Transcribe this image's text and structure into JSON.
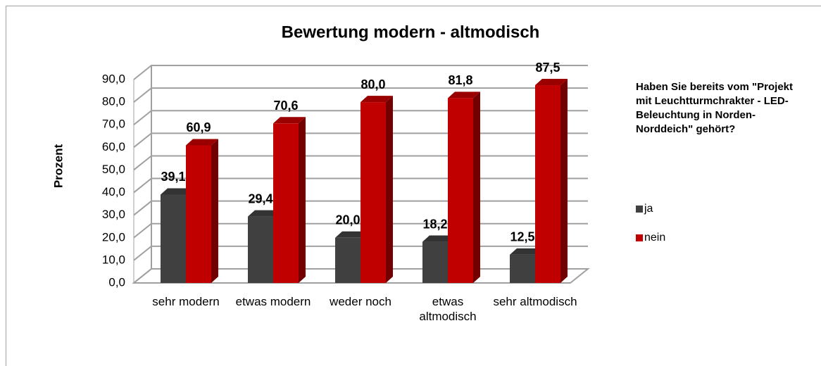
{
  "chart_data": {
    "type": "bar3d",
    "title": "Bewertung modern - altmodisch",
    "y_label": "Prozent",
    "legend_title": "Haben Sie bereits vom \"Projekt mit Leuchtturmchrakter - LED-Beleuchtung in Norden-Norddeich\" gehört?",
    "legend_position": "right",
    "categories": [
      "sehr modern",
      "etwas modern",
      "weder noch",
      "etwas altmodisch",
      "sehr altmodisch"
    ],
    "series": [
      {
        "name": "ja",
        "color": "#404040",
        "values": [
          39.1,
          29.4,
          20.0,
          18.2,
          12.5
        ],
        "value_labels": [
          "39,1",
          "29,4",
          "20,0",
          "18,2",
          "12,5"
        ]
      },
      {
        "name": "nein",
        "color": "#c00000",
        "values": [
          60.9,
          70.6,
          80.0,
          81.8,
          87.5
        ],
        "value_labels": [
          "60,9",
          "70,6",
          "80,0",
          "81,8",
          "87,5"
        ]
      }
    ],
    "ylim": [
      0,
      90
    ],
    "yticks": [
      {
        "value": 0,
        "label": "0,0"
      },
      {
        "value": 10,
        "label": "10,0"
      },
      {
        "value": 20,
        "label": "20,0"
      },
      {
        "value": 30,
        "label": "30,0"
      },
      {
        "value": 40,
        "label": "40,0"
      },
      {
        "value": 50,
        "label": "50,0"
      },
      {
        "value": 60,
        "label": "60,0"
      },
      {
        "value": 70,
        "label": "70,0"
      },
      {
        "value": 80,
        "label": "80,0"
      },
      {
        "value": 90,
        "label": "90,0"
      }
    ],
    "grid": true
  }
}
